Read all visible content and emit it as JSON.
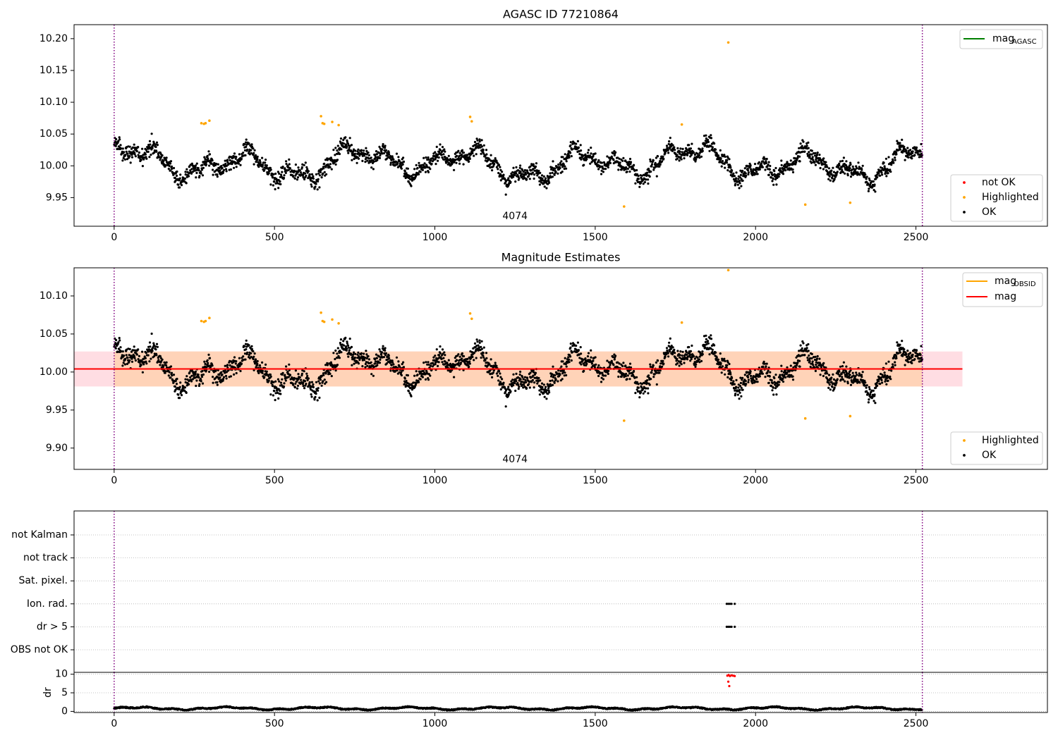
{
  "chart_data": [
    {
      "type": "scatter",
      "title": "AGASC ID 77210864",
      "xlim": [
        -125,
        2910
      ],
      "ylim": [
        9.905,
        10.222
      ],
      "xticks": [
        0,
        500,
        1000,
        1500,
        2000,
        2500
      ],
      "yticks": [
        9.95,
        10.0,
        10.05,
        10.1,
        10.15,
        10.2
      ],
      "vlines_dotted": [
        0,
        2520
      ],
      "annotation": {
        "text": "4074",
        "x": 1250
      },
      "legend_upper": [
        {
          "base": "mag",
          "sub": "AGASC",
          "color": "#008000"
        }
      ],
      "legend_lower": [
        {
          "label": "not OK",
          "color": "#ff0000"
        },
        {
          "label": "Highlighted",
          "color": "#ffa500"
        },
        {
          "label": "OK",
          "color": "#000000"
        }
      ],
      "series": [
        {
          "name": "OK",
          "color": "#000000",
          "n_points": 2520,
          "x_range": [
            0,
            2520
          ],
          "y_center": 10.004,
          "y_spread": 0.02
        },
        {
          "name": "Highlighted",
          "color": "#ffa500",
          "x": [
            272,
            280,
            285,
            297,
            645,
            650,
            655,
            680,
            700,
            1110,
            1115,
            1590,
            1770,
            1915,
            2155,
            2295
          ],
          "y": [
            10.067,
            10.066,
            10.067,
            10.071,
            10.078,
            10.067,
            10.066,
            10.069,
            10.064,
            10.077,
            10.07,
            9.936,
            10.065,
            10.194,
            9.939,
            9.942
          ]
        }
      ]
    },
    {
      "type": "scatter",
      "title": "Magnitude Estimates",
      "xlim": [
        -125,
        2910
      ],
      "ylim": [
        9.872,
        10.137
      ],
      "xticks": [
        0,
        500,
        1000,
        1500,
        2000,
        2500
      ],
      "yticks": [
        9.9,
        9.95,
        10.0,
        10.05,
        10.1
      ],
      "vlines_dotted": [
        0,
        2520
      ],
      "annotation": {
        "text": "4074",
        "x": 1250
      },
      "mag_line": {
        "y": 10.004,
        "x_range": [
          -125,
          2645
        ],
        "color": "#ff0000"
      },
      "band_pink": {
        "y_range": [
          9.981,
          10.027
        ],
        "x_range": [
          -125,
          2645
        ]
      },
      "band_orange": {
        "y_range": [
          9.981,
          10.027
        ],
        "x_range": [
          0,
          2520
        ]
      },
      "legend_upper": [
        {
          "base": "mag",
          "sub": "OBSID",
          "color": "#ffa500"
        },
        {
          "base": "mag",
          "sub": "",
          "color": "#ff0000"
        }
      ],
      "legend_lower": [
        {
          "label": "Highlighted",
          "color": "#ffa500"
        },
        {
          "label": "OK",
          "color": "#000000"
        }
      ]
    },
    {
      "type": "scatter",
      "title": "",
      "xlim": [
        -125,
        2910
      ],
      "categories": [
        "not Kalman",
        "not track",
        "Sat. pixel.",
        "Ion. rad.",
        "dr > 5",
        "OBS not OK"
      ],
      "flag_points": [
        {
          "category": "Ion. rad.",
          "x": [
            1910,
            1915,
            1920,
            1925,
            1935
          ]
        },
        {
          "category": "dr > 5",
          "x": [
            1910,
            1915,
            1920,
            1925,
            1935
          ]
        }
      ],
      "vlines_dotted": [
        0,
        2520
      ]
    },
    {
      "type": "scatter",
      "title": "",
      "xlabel": "",
      "ylabel": "dr",
      "xlim": [
        -125,
        2910
      ],
      "ylim": [
        -0.3,
        10.5
      ],
      "xticks": [
        0,
        500,
        1000,
        1500,
        2000,
        2500
      ],
      "yticks": [
        0,
        5,
        10
      ],
      "vlines_dotted": [
        0,
        2520
      ],
      "series": [
        {
          "name": "dr",
          "color": "#000000",
          "n_points": 2520,
          "x_range": [
            0,
            2520
          ],
          "y_center": 0.8,
          "y_amplitude": 0.3
        },
        {
          "name": "dr not OK",
          "color": "#ff0000",
          "x": [
            1912,
            1916,
            1920,
            1925,
            1930,
            1935,
            1915,
            1918
          ],
          "y": [
            9.6,
            9.8,
            9.5,
            9.7,
            9.6,
            9.5,
            8.0,
            6.8
          ]
        }
      ]
    }
  ]
}
